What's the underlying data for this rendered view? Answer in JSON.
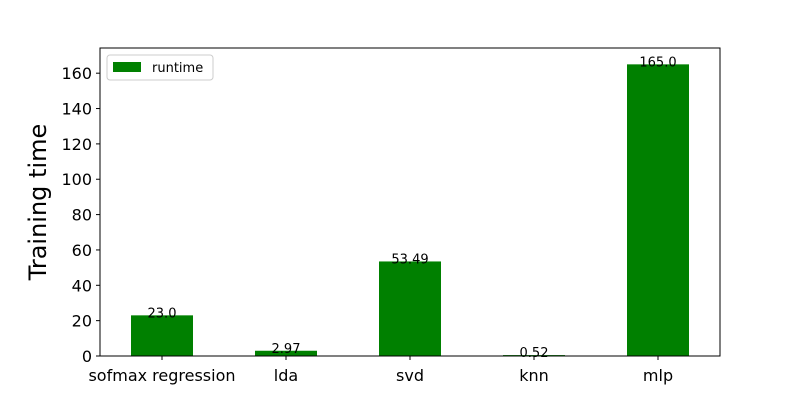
{
  "chart_data": {
    "type": "bar",
    "categories": [
      "sofmax regression",
      "lda",
      "svd",
      "knn",
      "mlp"
    ],
    "series": [
      {
        "name": "runtime",
        "values": [
          23.0,
          2.97,
          53.49,
          0.52,
          165.0
        ],
        "value_labels": [
          "23.0",
          "2.97",
          "53.49",
          "0.52",
          "165.0"
        ],
        "color": "#008000"
      }
    ],
    "title": "",
    "xlabel": "",
    "ylabel": "Training time",
    "ylim": [
      0,
      174.25
    ],
    "yticks": [
      0,
      20,
      40,
      60,
      80,
      100,
      120,
      140,
      160
    ],
    "grid": false,
    "legend_position": "upper left"
  }
}
